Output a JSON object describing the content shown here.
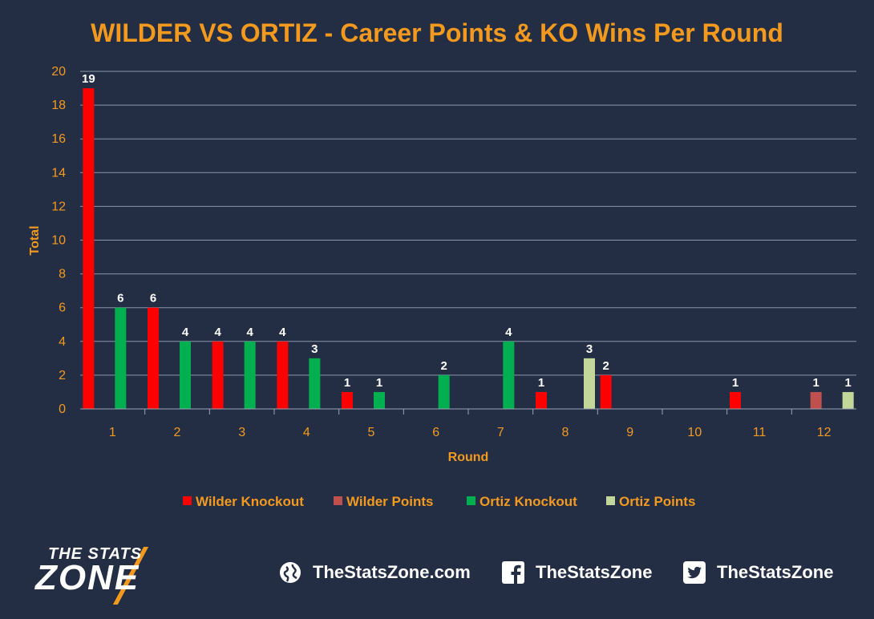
{
  "chart_data": {
    "type": "bar",
    "title": "WILDER VS ORTIZ - Career Points & KO Wins Per Round",
    "xlabel": "Round",
    "ylabel": "Total",
    "ylim": [
      0,
      20
    ],
    "yticks": [
      "0",
      "2",
      "4",
      "6",
      "8",
      "10",
      "12",
      "14",
      "16",
      "18",
      "20"
    ],
    "categories": [
      "1",
      "2",
      "3",
      "4",
      "5",
      "6",
      "7",
      "8",
      "9",
      "10",
      "11",
      "12"
    ],
    "grid": true,
    "legend_position": "bottom",
    "series": [
      {
        "name": "Wilder Knockout",
        "color": "#ff0000",
        "values": [
          19,
          6,
          4,
          4,
          1,
          null,
          null,
          1,
          2,
          null,
          1,
          null
        ]
      },
      {
        "name": "Wilder Points",
        "color": "#c0504d",
        "values": [
          null,
          null,
          null,
          null,
          null,
          null,
          null,
          null,
          null,
          null,
          null,
          1
        ]
      },
      {
        "name": "Ortiz Knockout",
        "color": "#00b050",
        "values": [
          6,
          4,
          4,
          3,
          1,
          2,
          4,
          null,
          null,
          null,
          null,
          null
        ]
      },
      {
        "name": "Ortiz Points",
        "color": "#c4d79b",
        "values": [
          null,
          null,
          null,
          null,
          null,
          null,
          null,
          3,
          null,
          null,
          null,
          1
        ]
      }
    ]
  },
  "footer": {
    "logo_line1": "THE STATS",
    "logo_line2": "ZONE",
    "website": "TheStatsZone.com",
    "facebook": "TheStatsZone",
    "twitter": "TheStatsZone",
    "icons": [
      "globe-icon",
      "facebook-icon",
      "twitter-icon"
    ]
  }
}
